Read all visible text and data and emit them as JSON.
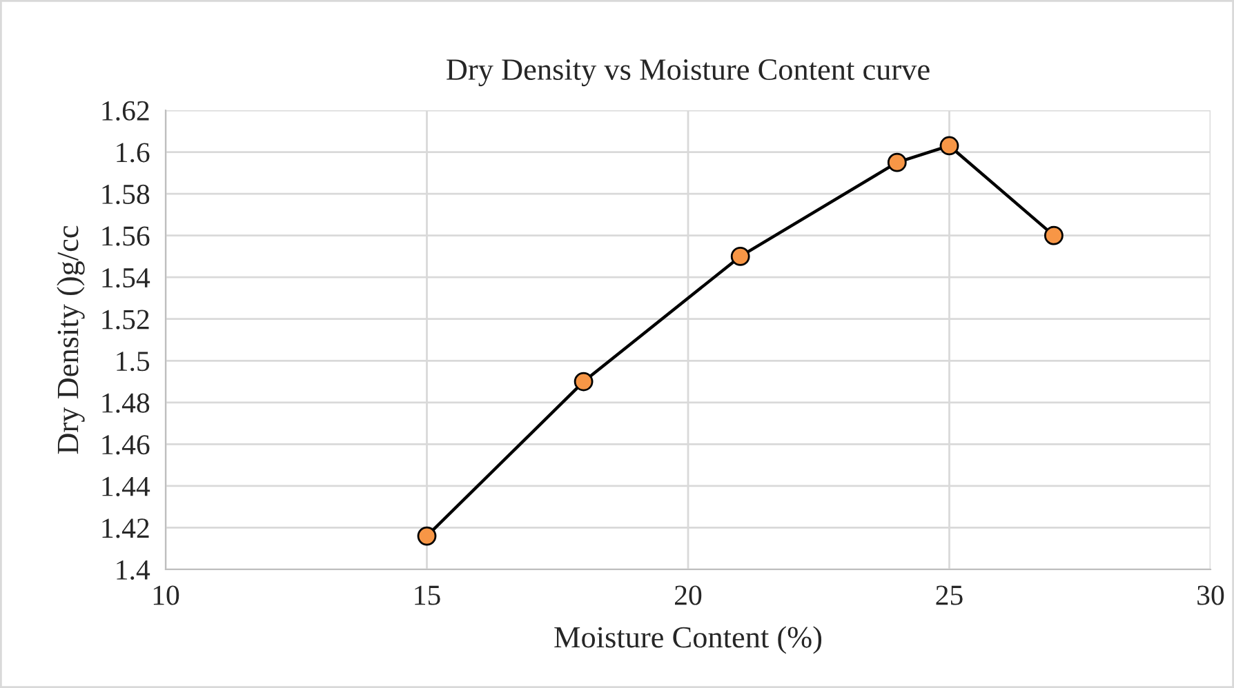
{
  "chart_data": {
    "type": "line",
    "title": "Dry Density vs Moisture Content curve",
    "xlabel": "Moisture Content (%)",
    "ylabel": "Dry Density ()g/cc",
    "x": [
      15,
      18,
      21,
      24,
      25,
      27
    ],
    "series": [
      {
        "color": "#000000",
        "values": [
          1.416,
          1.49,
          1.55,
          1.595,
          1.603,
          1.56
        ]
      },
      {
        "type": "scatter",
        "color": "#f79646",
        "marker": "circle",
        "values": [
          1.416,
          1.49,
          1.55,
          1.595,
          1.603,
          1.56
        ]
      }
    ],
    "line_style": "solid",
    "xlim": [
      10,
      30
    ],
    "xticks": [
      10,
      15,
      20,
      25,
      30
    ],
    "ylim": [
      1.4,
      1.62
    ],
    "yticks": [
      {
        "value": 1.4,
        "label": "1.4"
      },
      {
        "value": 1.42,
        "label": "1.42"
      },
      {
        "value": 1.44,
        "label": "1.44"
      },
      {
        "value": 1.46,
        "label": "1.46"
      },
      {
        "value": 1.48,
        "label": "1.48"
      },
      {
        "value": 1.5,
        "label": "1.5"
      },
      {
        "value": 1.52,
        "label": "1.52"
      },
      {
        "value": 1.54,
        "label": "1.54"
      },
      {
        "value": 1.56,
        "label": "1.56"
      },
      {
        "value": 1.58,
        "label": "1.58"
      },
      {
        "value": 1.6,
        "label": "1.6"
      },
      {
        "value": 1.62,
        "label": "1.62"
      }
    ],
    "grid": true,
    "legend": false
  }
}
